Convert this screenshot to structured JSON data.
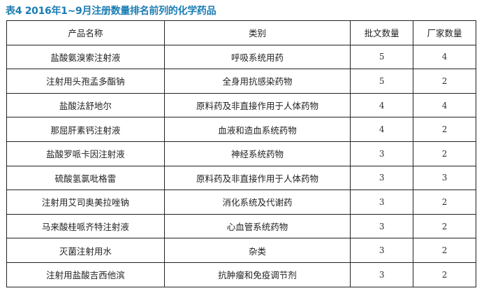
{
  "title": "表4 2016年1~9月注册数量排名前列的化学药品",
  "colors": {
    "title": "#1a7db3"
  },
  "headers": [
    "产品名称",
    "类别",
    "批文数量",
    "厂家数量"
  ],
  "rows": [
    [
      "盐酸氨溴索注射液",
      "呼吸系统用药",
      "5",
      "4"
    ],
    [
      "注射用头孢孟多酯钠",
      "全身用抗感染药物",
      "5",
      "2"
    ],
    [
      "盐酸法舒地尔",
      "原料药及非直接作用于人体药物",
      "4",
      "4"
    ],
    [
      "那屈肝素钙注射液",
      "血液和造血系统药物",
      "4",
      "2"
    ],
    [
      "盐酸罗哌卡因注射液",
      "神经系统药物",
      "3",
      "2"
    ],
    [
      "硫酸氢氯吡格雷",
      "原料药及非直接作用于人体药物",
      "3",
      "3"
    ],
    [
      "注射用艾司奥美拉唑钠",
      "消化系统及代谢药",
      "3",
      "2"
    ],
    [
      "马来酸桂哌齐特注射液",
      "心血管系统药物",
      "3",
      "2"
    ],
    [
      "灭菌注射用水",
      "杂类",
      "3",
      "2"
    ],
    [
      "注射用盐酸吉西他滨",
      "抗肿瘤和免疫调节剂",
      "3",
      "2"
    ]
  ]
}
